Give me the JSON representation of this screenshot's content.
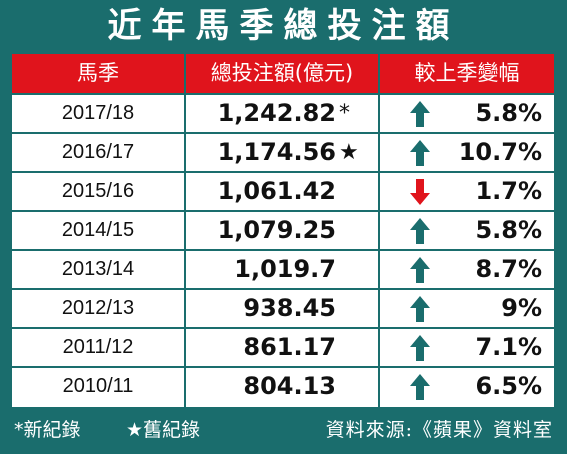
{
  "title": "近年馬季總投注額",
  "columns": {
    "season": "馬季",
    "total": "總投注額(億元)",
    "change": "較上季變幅"
  },
  "rows": [
    {
      "season": "2017/18",
      "total": "1,242.82",
      "mark": "*",
      "direction": "up",
      "change": "5.8%"
    },
    {
      "season": "2016/17",
      "total": "1,174.56",
      "mark": "★",
      "direction": "up",
      "change": "10.7%"
    },
    {
      "season": "2015/16",
      "total": "1,061.42",
      "mark": "",
      "direction": "down",
      "change": "1.7%"
    },
    {
      "season": "2014/15",
      "total": "1,079.25",
      "mark": "",
      "direction": "up",
      "change": "5.8%"
    },
    {
      "season": "2013/14",
      "total": "1,019.7",
      "mark": "",
      "direction": "up",
      "change": "8.7%"
    },
    {
      "season": "2012/13",
      "total": "938.45",
      "mark": "",
      "direction": "up",
      "change": "9%"
    },
    {
      "season": "2011/12",
      "total": "861.17",
      "mark": "",
      "direction": "up",
      "change": "7.1%"
    },
    {
      "season": "2010/11",
      "total": "804.13",
      "mark": "",
      "direction": "up",
      "change": "6.5%"
    }
  ],
  "footer": {
    "legend_new": "*新紀錄",
    "legend_old": "★舊紀錄",
    "source": "資料來源:《蘋果》資料室"
  },
  "colors": {
    "background": "#1a6d6d",
    "header": "#e0141c",
    "up_arrow": "#1a6d6d",
    "down_arrow": "#e0141c"
  }
}
